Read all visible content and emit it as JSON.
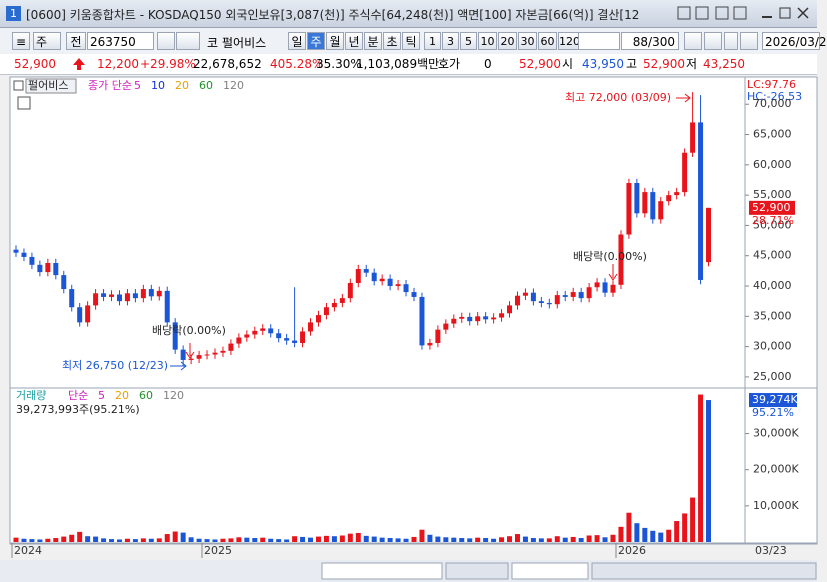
{
  "window": {
    "icon": "1",
    "title": "[0600] 키움종합차트 - KOSDAQ150 외국인보유[3,087(천)] 주식수[64,248(천)] 액면[100] 자본금[66(억)] 결산[12"
  },
  "toolbar": {
    "period_type": "주",
    "range": "전",
    "code": "263750",
    "market": "코",
    "name": "펄어비스",
    "periods": [
      "일",
      "주",
      "월",
      "년",
      "분",
      "초",
      "틱"
    ],
    "active_period": "주",
    "intervals": [
      "1",
      "3",
      "5",
      "10",
      "20",
      "30",
      "60",
      "120"
    ],
    "count": "88/300",
    "date": "2026/03/2"
  },
  "quote": {
    "price": "52,900",
    "change": "12,200",
    "change_pct": "+29.98%",
    "volume": "22,678,652",
    "volume_ratio": "405.28%",
    "turnover": "35.30%",
    "amount": "1,103,089백만",
    "hoga_label": "호가",
    "hoga": "0",
    "hoga_price": "52,900",
    "open_label": "시",
    "open": "43,950",
    "high_label": "고",
    "high": "52,900",
    "low_label": "저",
    "low": "43,250"
  },
  "chart_data": [
    {
      "type": "candlestick",
      "name": "펄어비스",
      "legend": "종가 단순",
      "ma_periods": [
        "5",
        "10",
        "20",
        "60",
        "120"
      ],
      "ma_colors": [
        "#d020c0",
        "#1030e0",
        "#e8a000",
        "#20902a",
        "#808080"
      ],
      "up_color": "#e8141c",
      "down_color": "#1a56d6",
      "lc": "LC:97.76",
      "hc": "HC:-26.53",
      "last_label": "52,900",
      "last_pct": "28.71%",
      "annotations": [
        "최고 72,000 (03/09)",
        "최저 26,750 (12/23)",
        "배당락(0.00%)",
        "배당락(0.00%)"
      ],
      "x_labels": [
        "2024",
        "2025",
        "2026"
      ],
      "x_last_label": "03/23",
      "open": [
        46000,
        45500,
        44800,
        43500,
        42300,
        43800,
        41800,
        39500,
        36500,
        34000,
        36800,
        38800,
        38200,
        38600,
        37500,
        38800,
        38000,
        39500,
        38300,
        39200,
        34000,
        29500,
        27800,
        28000,
        28600,
        28700,
        29000,
        29300,
        30500,
        31500,
        32000,
        32600,
        33000,
        32200,
        31400,
        31000,
        30600,
        32500,
        34000,
        35200,
        36500,
        37200,
        38000,
        40500,
        42800,
        42200,
        40800,
        41200,
        40000,
        40300,
        39000,
        38200,
        30200,
        30600,
        32800,
        33800,
        34600,
        34900,
        34200,
        35000,
        34500,
        34800,
        35500,
        36800,
        38400,
        38900,
        37500,
        37200,
        37000,
        38500,
        38200,
        39000,
        38000,
        39800,
        40600,
        38900,
        40200,
        48500,
        57000,
        52000,
        55500,
        51000,
        54000,
        55000,
        55500,
        62000,
        67000,
        43950
      ],
      "high": [
        46700,
        46200,
        45500,
        44200,
        44500,
        44500,
        42500,
        40200,
        37200,
        37500,
        39500,
        39500,
        39300,
        39300,
        39500,
        39500,
        40200,
        40200,
        39900,
        39900,
        34700,
        30200,
        28700,
        29300,
        29400,
        29700,
        30000,
        31200,
        32200,
        32700,
        33300,
        33700,
        33700,
        32900,
        32100,
        39800,
        33200,
        34700,
        35900,
        37200,
        37900,
        38700,
        41200,
        43500,
        43500,
        42900,
        41900,
        41900,
        41000,
        41000,
        39700,
        38900,
        31300,
        33500,
        34500,
        35300,
        35600,
        35600,
        35700,
        35700,
        35500,
        36200,
        37500,
        39100,
        39600,
        39600,
        38200,
        37900,
        39200,
        39200,
        39700,
        39700,
        40500,
        41300,
        41300,
        40900,
        49200,
        57700,
        57700,
        56200,
        56200,
        54700,
        55700,
        56200,
        62700,
        72000,
        71500,
        52900
      ],
      "low": [
        44800,
        44100,
        42800,
        41600,
        41600,
        41100,
        38800,
        35800,
        33300,
        33300,
        36100,
        37500,
        37500,
        36800,
        36800,
        37300,
        37300,
        37600,
        37600,
        33300,
        28800,
        26750,
        27100,
        27300,
        27900,
        28000,
        28300,
        28600,
        29800,
        30800,
        31300,
        31900,
        31500,
        30700,
        30300,
        29900,
        29900,
        31800,
        33300,
        34500,
        35800,
        36500,
        37300,
        39800,
        41500,
        40100,
        40100,
        39300,
        39300,
        38300,
        37500,
        29500,
        29500,
        29900,
        32100,
        33100,
        33900,
        33500,
        33500,
        33800,
        33800,
        34100,
        34800,
        36100,
        37700,
        36800,
        36500,
        36300,
        36300,
        37500,
        37500,
        37300,
        37300,
        39100,
        38200,
        38200,
        39500,
        47800,
        51300,
        51300,
        50300,
        50300,
        53300,
        54300,
        54800,
        61300,
        40300,
        43250
      ],
      "close": [
        45500,
        44800,
        43500,
        42300,
        43800,
        41800,
        39500,
        36500,
        34000,
        36800,
        38800,
        38200,
        38600,
        37500,
        38800,
        38000,
        39500,
        38300,
        39200,
        34000,
        29500,
        27800,
        28000,
        28600,
        28700,
        29000,
        29300,
        30500,
        31500,
        32000,
        32600,
        33000,
        32200,
        31400,
        31000,
        30600,
        32500,
        34000,
        35200,
        36500,
        37200,
        38000,
        40500,
        42800,
        42200,
        40800,
        41200,
        40000,
        40300,
        39000,
        38200,
        30200,
        30600,
        32800,
        33800,
        34600,
        34900,
        34200,
        35000,
        34500,
        34800,
        35500,
        36800,
        38400,
        38900,
        37500,
        37200,
        37000,
        38500,
        38200,
        39000,
        38000,
        39800,
        40600,
        38900,
        40200,
        48500,
        57000,
        52000,
        55500,
        51000,
        54000,
        55000,
        55500,
        62000,
        67000,
        41000,
        52900
      ],
      "ylim": [
        23500,
        74000
      ],
      "yticks": [
        {
          "value": 25000,
          "label": "25,000"
        },
        {
          "value": 30000,
          "label": "30,000"
        },
        {
          "value": 35000,
          "label": "35,000"
        },
        {
          "value": 40000,
          "label": "40,000"
        },
        {
          "value": 45000,
          "label": "45,000"
        },
        {
          "value": 50000,
          "label": "50,000"
        },
        {
          "value": 55000,
          "label": "55,000"
        },
        {
          "value": 60000,
          "label": "60,000"
        },
        {
          "value": 65000,
          "label": "65,000"
        },
        {
          "value": 70000,
          "label": "70,000"
        }
      ]
    },
    {
      "type": "bar",
      "legend": "거래량",
      "ma_label": "단순",
      "ma_periods": [
        "5",
        "20",
        "60",
        "120"
      ],
      "ma_colors": [
        "#d020c0",
        "#e8a000",
        "#20902a",
        "#808080"
      ],
      "info": "39,273,993주(95.21%)",
      "last_label": "39,274K",
      "last_pct": "95.21%",
      "up_color": "#e8141c",
      "down_color": "#1a56d6",
      "values": [
        1200000,
        900000,
        800000,
        700000,
        900000,
        1100000,
        1500000,
        2000000,
        2800000,
        1600000,
        1500000,
        1000000,
        800000,
        700000,
        900000,
        800000,
        1000000,
        900000,
        1000000,
        2200000,
        2900000,
        2600000,
        1300000,
        900000,
        800000,
        700000,
        900000,
        1000000,
        1300000,
        1200000,
        1100000,
        1200000,
        900000,
        800000,
        700000,
        1600000,
        1400000,
        1200000,
        1500000,
        1700000,
        1600000,
        1800000,
        2300000,
        2500000,
        1700000,
        1500000,
        1200000,
        1100000,
        1000000,
        900000,
        1400000,
        3400000,
        2000000,
        1500000,
        1300000,
        1200000,
        1100000,
        1000000,
        1200000,
        1100000,
        900000,
        1300000,
        1600000,
        2200000,
        1500000,
        1100000,
        1000000,
        1000000,
        1600000,
        1200000,
        1400000,
        1100000,
        1800000,
        1900000,
        1300000,
        2000000,
        4200000,
        8100000,
        5200000,
        3900000,
        3100000,
        2600000,
        3400000,
        5800000,
        7900000,
        12300000,
        40800000,
        39273993
      ],
      "ylim": [
        0,
        41500000
      ],
      "yticks": [
        {
          "value": 10000000,
          "label": "10,000K"
        },
        {
          "value": 20000000,
          "label": "20,000K"
        },
        {
          "value": 30000000,
          "label": "30,000K"
        }
      ]
    }
  ]
}
